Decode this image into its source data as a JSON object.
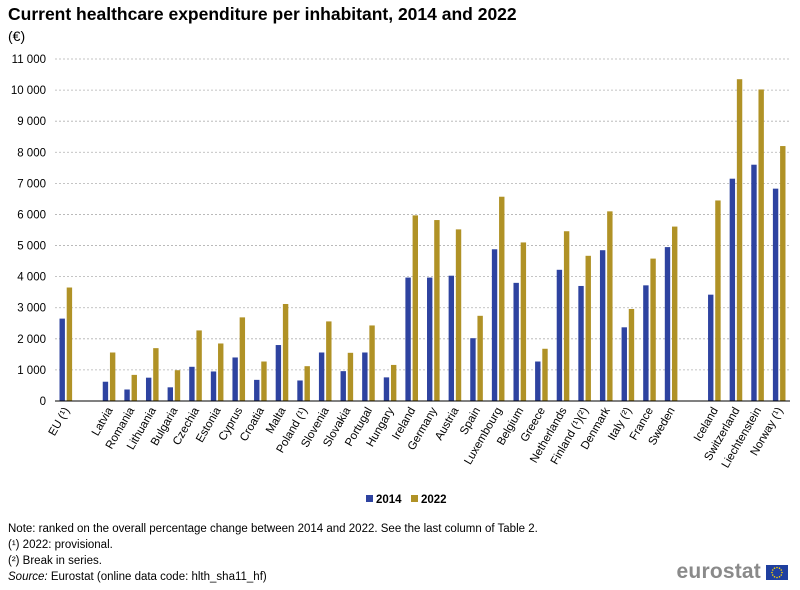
{
  "title": "Current healthcare expenditure per inhabitant, 2014 and 2022",
  "unit": "(€)",
  "colors": {
    "series_2014": "#2e43a0",
    "series_2022": "#b09226",
    "grid": "#b0b0b0"
  },
  "chart_data": {
    "type": "bar",
    "title": "Current healthcare expenditure per inhabitant, 2014 and 2022",
    "ylabel": "(€)",
    "xlabel": "",
    "ylim": [
      0,
      11000
    ],
    "yticks": [
      0,
      1000,
      2000,
      3000,
      4000,
      5000,
      6000,
      7000,
      8000,
      9000,
      10000,
      11000
    ],
    "ytick_labels": [
      "0",
      "1 000",
      "2 000",
      "3 000",
      "4 000",
      "5 000",
      "6 000",
      "7 000",
      "8 000",
      "9 000",
      "10 000",
      "11 000"
    ],
    "grid": true,
    "legend_position": "bottom-center",
    "categories": [
      "EU (¹)",
      "",
      "Latvia",
      "Romania",
      "Lithuania",
      "Bulgaria",
      "Czechia",
      "Estonia",
      "Cyprus",
      "Croatia",
      "Malta",
      "Poland (¹)",
      "Slovenia",
      "Slovakia",
      "Portugal",
      "Hungary",
      "Ireland",
      "Germany",
      "Austria",
      "Spain",
      "Luxembourg",
      "Belgium",
      "Greece",
      "Netherlands",
      "Finland (¹)(²)",
      "Denmark",
      "Italy (²)",
      "France",
      "Sweden",
      "",
      "Iceland",
      "Switzerland",
      "Liechtenstein",
      "Norway (¹)"
    ],
    "series": [
      {
        "name": "2014",
        "values": [
          2650,
          null,
          620,
          370,
          750,
          440,
          1100,
          950,
          1400,
          680,
          1800,
          660,
          1560,
          960,
          1560,
          760,
          3970,
          3970,
          4030,
          2020,
          4880,
          3800,
          1270,
          4220,
          3700,
          4850,
          2370,
          3720,
          4950,
          null,
          3420,
          7150,
          7600,
          6830
        ]
      },
      {
        "name": "2022",
        "values": [
          3650,
          null,
          1560,
          840,
          1700,
          990,
          2270,
          1850,
          2690,
          1270,
          3120,
          1120,
          2560,
          1550,
          2430,
          1160,
          5970,
          5820,
          5520,
          2740,
          6570,
          5100,
          1680,
          5460,
          4670,
          6100,
          2960,
          4580,
          5610,
          null,
          6450,
          10350,
          10020,
          8200
        ]
      }
    ]
  },
  "legend": {
    "label_2014": "2014",
    "label_2022": "2022"
  },
  "notes": {
    "line1": "Note: ranked on the overall percentage change between 2014 and 2022. See the last column of Table 2.",
    "line2": "(¹) 2022: provisional.",
    "line3": "(²) Break in series.",
    "source_label": "Source:",
    "source_text": " Eurostat (online data code: hlth_sha11_hf)"
  },
  "logo": {
    "text": "eurostat",
    "icon": "eu-flag-icon"
  }
}
